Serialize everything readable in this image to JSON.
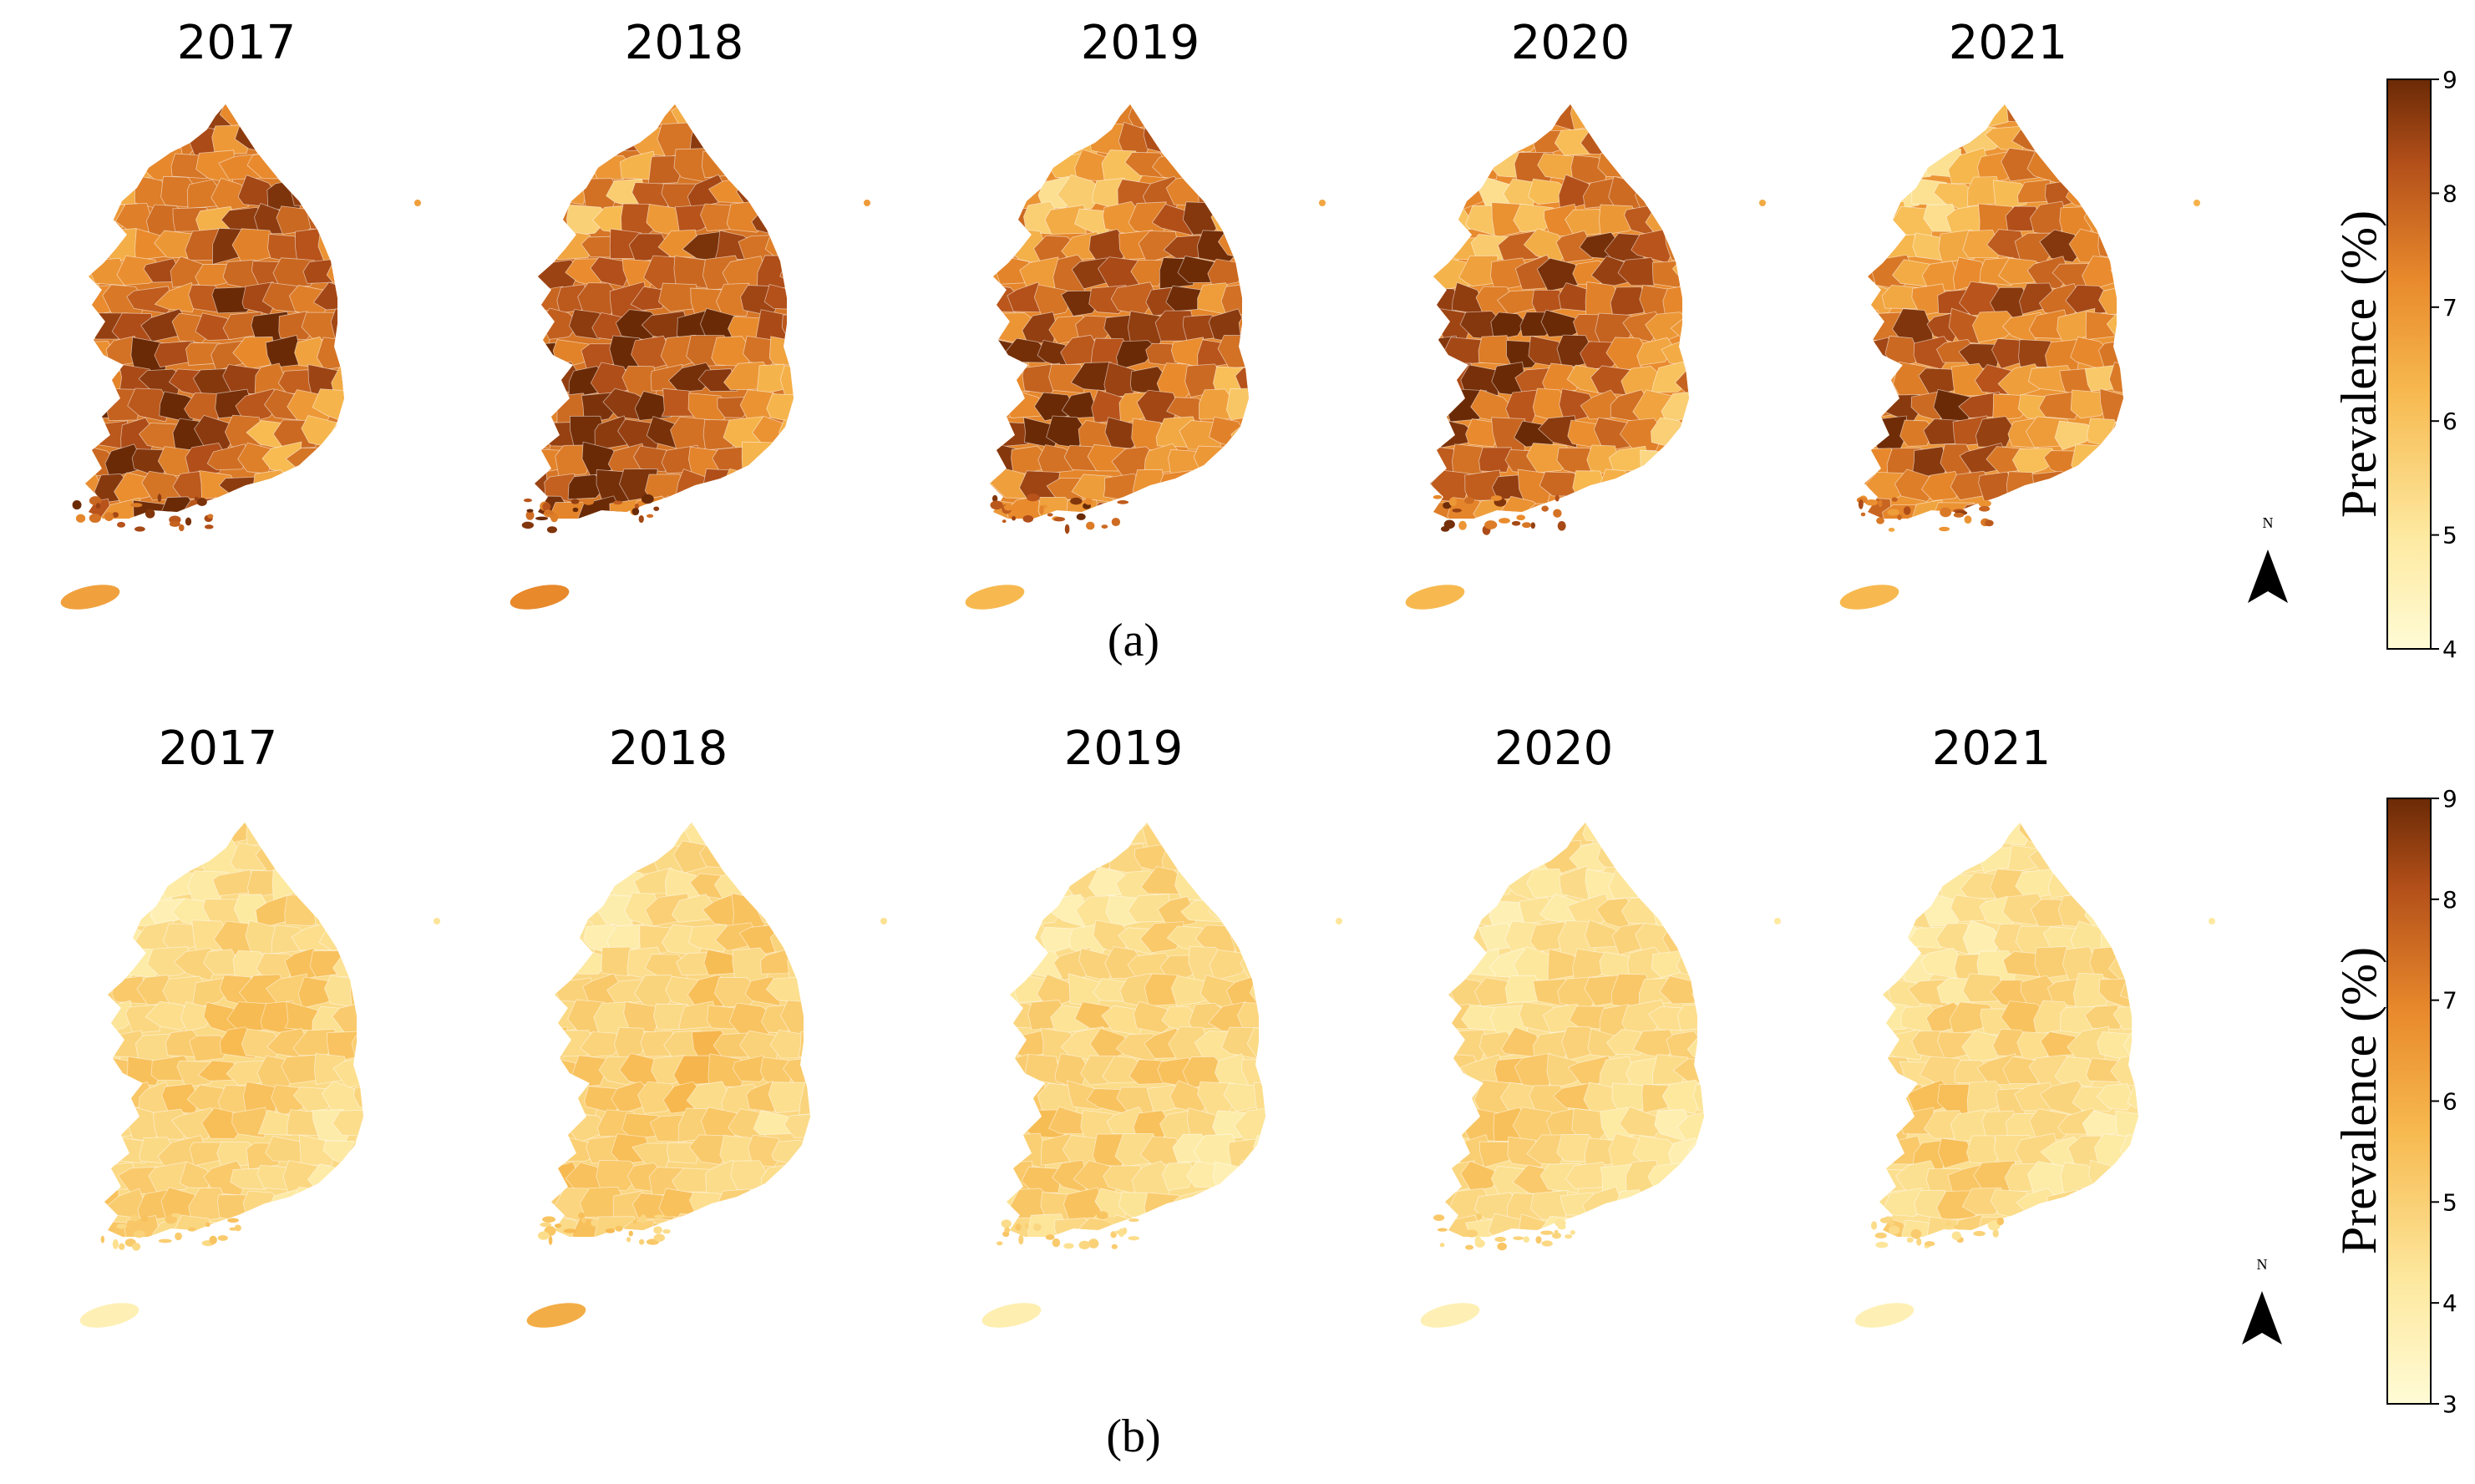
{
  "colors": {
    "low": "#fffbd5",
    "mid": "#f5a63e",
    "high": "#6b2a06",
    "border": "#ffffff"
  },
  "icons": [
    "north-arrow-icon"
  ],
  "panels": [
    {
      "id": "a",
      "label": "(a)",
      "years": [
        "2017",
        "2018",
        "2019",
        "2020",
        "2021"
      ],
      "colorbar": {
        "title": "Prevalence (%)",
        "min": 4,
        "max": 9,
        "ticks": [
          "4",
          "5",
          "6",
          "7",
          "8",
          "9"
        ]
      },
      "north_label": "N",
      "jeju_level": [
        0.55,
        0.65,
        0.45,
        0.45,
        0.45
      ],
      "year_intensity": [
        0.7,
        0.72,
        0.66,
        0.64,
        0.6
      ]
    },
    {
      "id": "b",
      "label": "(b)",
      "years": [
        "2017",
        "2018",
        "2019",
        "2020",
        "2021"
      ],
      "colorbar": {
        "title": "Prevalence (%)",
        "min": 3,
        "max": 9,
        "ticks": [
          "3",
          "4",
          "5",
          "6",
          "7",
          "8",
          "9"
        ]
      },
      "north_label": "N",
      "jeju_level": [
        0.12,
        0.5,
        0.14,
        0.12,
        0.12
      ],
      "year_intensity": [
        0.28,
        0.3,
        0.27,
        0.25,
        0.25
      ]
    }
  ]
}
